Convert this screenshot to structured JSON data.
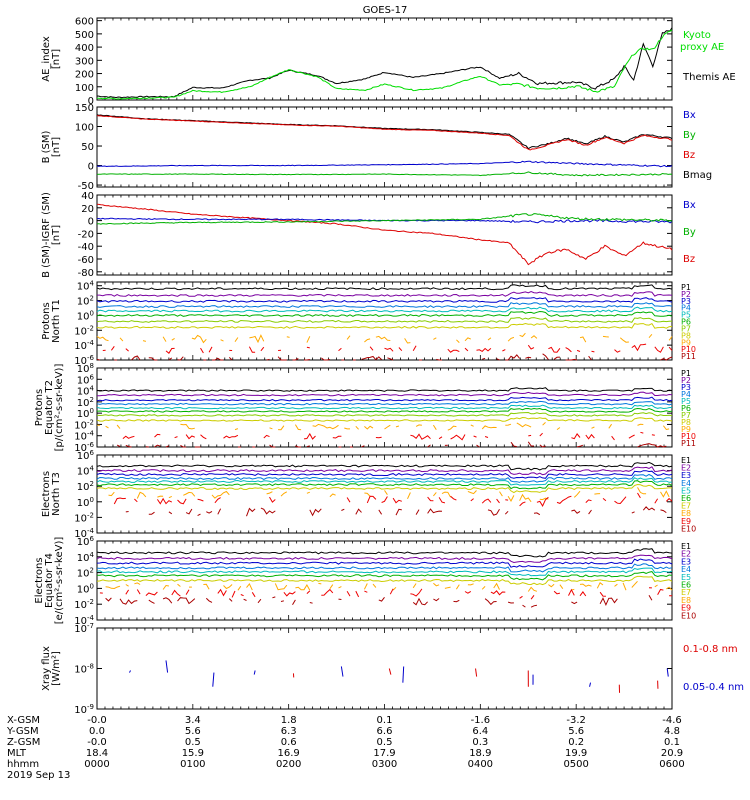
{
  "title": "GOES-17",
  "colors": {
    "black": "#000000",
    "red": "#dd0000",
    "blue": "#0000cc",
    "green": "#00b000",
    "brightgreen": "#00dd00",
    "darkred": "#8b0000"
  },
  "chart_data": [
    {
      "type": "line",
      "name": "ae-index",
      "ylabel": [
        "AE_index",
        "[nT]"
      ],
      "yticks": [
        0,
        100,
        200,
        300,
        400,
        500,
        600
      ],
      "ylim": [
        0,
        620
      ],
      "log": false,
      "legend": [
        {
          "label": "Kyoto",
          "color": "#00dd00"
        },
        {
          "label": "proxy AE",
          "color": "#00dd00"
        },
        {
          "label": "Themis AE",
          "color": "#000000"
        }
      ],
      "series": [
        {
          "name": "Themis AE",
          "color": "#000000",
          "x": [
            0,
            0.2,
            0.5,
            0.8,
            1.0,
            1.3,
            1.6,
            1.8,
            2.0,
            2.3,
            2.5,
            2.8,
            3.0,
            3.3,
            3.6,
            3.9,
            4.0,
            4.2,
            4.4,
            4.6,
            4.8,
            5.0,
            5.2,
            5.4,
            5.5,
            5.6,
            5.7,
            5.8,
            5.9,
            6.0
          ],
          "y": [
            30,
            20,
            25,
            25,
            95,
            90,
            150,
            165,
            225,
            185,
            125,
            160,
            210,
            170,
            200,
            240,
            250,
            165,
            200,
            125,
            130,
            135,
            90,
            160,
            255,
            150,
            420,
            260,
            500,
            540
          ]
        },
        {
          "name": "Kyoto proxy AE",
          "color": "#00dd00",
          "x": [
            0,
            0.2,
            0.5,
            0.8,
            1.0,
            1.3,
            1.6,
            1.8,
            2.0,
            2.3,
            2.5,
            2.8,
            3.0,
            3.3,
            3.6,
            3.9,
            4.0,
            4.2,
            4.4,
            4.6,
            4.8,
            5.0,
            5.2,
            5.4,
            5.5,
            5.6,
            5.7,
            5.8,
            5.9,
            6.0
          ],
          "y": [
            15,
            10,
            15,
            20,
            70,
            60,
            100,
            170,
            230,
            175,
            85,
            75,
            120,
            75,
            90,
            160,
            180,
            115,
            120,
            90,
            90,
            105,
            65,
            100,
            240,
            350,
            390,
            380,
            480,
            530
          ]
        }
      ]
    },
    {
      "type": "line",
      "name": "b-sm",
      "ylabel": [
        "B (SM)",
        "[nT]"
      ],
      "yticks": [
        -50,
        0,
        50,
        100,
        150
      ],
      "ylim": [
        -55,
        150
      ],
      "log": false,
      "legend": [
        {
          "label": "Bx",
          "color": "#0000cc"
        },
        {
          "label": "By",
          "color": "#00b000"
        },
        {
          "label": "Bz",
          "color": "#dd0000"
        },
        {
          "label": "Bmag",
          "color": "#000000"
        }
      ],
      "series": [
        {
          "name": "Bmag",
          "color": "#000000",
          "x": [
            0,
            0.5,
            1.0,
            1.5,
            2.0,
            2.5,
            3.0,
            3.5,
            4.0,
            4.3,
            4.5,
            4.7,
            4.9,
            5.1,
            5.3,
            5.5,
            5.7,
            6.0
          ],
          "y": [
            130,
            120,
            115,
            110,
            105,
            102,
            95,
            92,
            85,
            80,
            45,
            55,
            70,
            55,
            75,
            60,
            80,
            70
          ]
        },
        {
          "name": "Bz",
          "color": "#dd0000",
          "x": [
            0,
            0.5,
            1.0,
            1.5,
            2.0,
            2.5,
            3.0,
            3.5,
            4.0,
            4.3,
            4.5,
            4.7,
            4.9,
            5.1,
            5.3,
            5.5,
            5.7,
            6.0
          ],
          "y": [
            128,
            119,
            114,
            109,
            104,
            101,
            93,
            90,
            83,
            77,
            40,
            52,
            67,
            52,
            72,
            57,
            77,
            67
          ]
        },
        {
          "name": "Bx",
          "color": "#0000cc",
          "x": [
            0,
            1.0,
            2.0,
            3.0,
            4.0,
            4.5,
            5.0,
            6.0
          ],
          "y": [
            -2,
            0,
            0,
            2,
            5,
            10,
            5,
            -2
          ]
        },
        {
          "name": "By",
          "color": "#00b000",
          "x": [
            0,
            1.0,
            2.0,
            3.0,
            4.0,
            4.5,
            5.0,
            6.0
          ],
          "y": [
            -22,
            -22,
            -23,
            -22,
            -25,
            -18,
            -25,
            -22
          ]
        }
      ]
    },
    {
      "type": "line",
      "name": "b-sm-minus-igrf",
      "ylabel": [
        "B (SM)-IGRF (SM)",
        "[nT]"
      ],
      "yticks": [
        -80,
        -60,
        -40,
        -20,
        0,
        20,
        40
      ],
      "ylim": [
        -85,
        40
      ],
      "log": false,
      "legend": [
        {
          "label": "Bx",
          "color": "#0000cc"
        },
        {
          "label": "By",
          "color": "#00b000"
        },
        {
          "label": "Bz",
          "color": "#dd0000"
        }
      ],
      "series": [
        {
          "name": "Bz",
          "color": "#dd0000",
          "x": [
            0,
            0.5,
            1.0,
            1.5,
            2.0,
            2.5,
            3.0,
            3.5,
            4.0,
            4.3,
            4.5,
            4.7,
            4.9,
            5.1,
            5.3,
            5.5,
            5.7,
            6.0
          ],
          "y": [
            25,
            18,
            10,
            5,
            0,
            -5,
            -15,
            -20,
            -30,
            -35,
            -68,
            -50,
            -45,
            -60,
            -40,
            -55,
            -35,
            -45
          ]
        },
        {
          "name": "Bx",
          "color": "#0000cc",
          "x": [
            0,
            1.0,
            2.0,
            3.0,
            4.0,
            4.5,
            5.0,
            6.0
          ],
          "y": [
            3,
            2,
            2,
            0,
            0,
            -2,
            0,
            -2
          ]
        },
        {
          "name": "By",
          "color": "#00b000",
          "x": [
            0,
            1.0,
            2.0,
            3.0,
            4.0,
            4.5,
            5.0,
            6.0
          ],
          "y": [
            -5,
            -3,
            -2,
            0,
            2,
            10,
            3,
            0
          ]
        }
      ]
    },
    {
      "type": "line",
      "name": "protons-north",
      "ylabel": [
        "Protons",
        "North T1"
      ],
      "yticks": [
        "10^4",
        "10^2",
        "10^0",
        "10^-2",
        "10^-4",
        "10^-6"
      ],
      "ylim": [
        -6,
        4.5
      ],
      "log": true,
      "channels": [
        "P1",
        "P2",
        "P3",
        "P4",
        "P5",
        "P6",
        "P7",
        "P8",
        "P9",
        "P10",
        "P11"
      ],
      "channel_colors": [
        "#000000",
        "#7a00a0",
        "#0000cc",
        "#0077dd",
        "#00bbbb",
        "#00b000",
        "#88cc00",
        "#cccc00",
        "#ffaa00",
        "#ee0000",
        "#aa0000"
      ],
      "levels": [
        3.6,
        2.7,
        1.9,
        1.2,
        0.6,
        0.0,
        -0.8,
        -1.6,
        -3.2,
        -4.6,
        -6.0
      ]
    },
    {
      "type": "line",
      "name": "protons-equator",
      "ylabel": [
        "Protons",
        "Equator T2",
        "[p/(cm²-s-sr-keV)]"
      ],
      "yticks": [
        "10^8",
        "10^6",
        "10^4",
        "10^2",
        "10^0",
        "10^-2",
        "10^-4",
        "10^-6"
      ],
      "ylim": [
        -6,
        8
      ],
      "log": true,
      "channels": [
        "P1",
        "P2",
        "P3",
        "P4",
        "P5",
        "P6",
        "P7",
        "P8",
        "P9",
        "P10",
        "P11"
      ],
      "channel_colors": [
        "#000000",
        "#7a00a0",
        "#0000cc",
        "#0077dd",
        "#00bbbb",
        "#00b000",
        "#88cc00",
        "#cccc00",
        "#ffaa00",
        "#ee0000",
        "#aa0000"
      ],
      "levels": [
        4.0,
        3.2,
        2.3,
        1.6,
        0.9,
        0.3,
        -0.4,
        -1.3,
        -2.5,
        -4.2,
        -6.0
      ]
    },
    {
      "type": "line",
      "name": "electrons-north",
      "ylabel": [
        "Electrons",
        "North T3"
      ],
      "yticks": [
        "10^6",
        "10^4",
        "10^2",
        "10^0",
        "10^-2",
        "10^-4"
      ],
      "ylim": [
        -4,
        6
      ],
      "log": true,
      "channels": [
        "E1",
        "E2",
        "E3",
        "E4",
        "E5",
        "E6",
        "E7",
        "E8",
        "E9",
        "E10"
      ],
      "channel_colors": [
        "#000000",
        "#7a00a0",
        "#0000cc",
        "#0077dd",
        "#00bbbb",
        "#00b000",
        "#cccc00",
        "#ffaa00",
        "#ee0000",
        "#aa0000"
      ],
      "levels": [
        4.6,
        4.0,
        3.5,
        3.0,
        2.6,
        2.2,
        1.7,
        0.9,
        0.2,
        -1.3
      ]
    },
    {
      "type": "line",
      "name": "electrons-equator",
      "ylabel": [
        "Electrons",
        "Equator T4",
        "[e/(cm²-s-sr-keV)]"
      ],
      "yticks": [
        "10^6",
        "10^4",
        "10^2",
        "10^0",
        "10^-2",
        "10^-4"
      ],
      "ylim": [
        -4,
        6
      ],
      "log": true,
      "channels": [
        "E1",
        "E2",
        "E3",
        "E4",
        "E5",
        "E6",
        "E7",
        "E8",
        "E9",
        "E10"
      ],
      "channel_colors": [
        "#000000",
        "#7a00a0",
        "#0000cc",
        "#0077dd",
        "#00bbbb",
        "#00b000",
        "#cccc00",
        "#ffaa00",
        "#ee0000",
        "#aa0000"
      ],
      "levels": [
        4.5,
        3.8,
        3.2,
        2.6,
        2.1,
        1.6,
        1.0,
        0.2,
        -0.6,
        -1.6
      ]
    },
    {
      "type": "scatter",
      "name": "xray-flux",
      "ylabel": [
        "Xray flux",
        "[W/m²]"
      ],
      "yticks": [
        "10^-7",
        "10^-8",
        "10^-9"
      ],
      "ylim": [
        -9,
        -7
      ],
      "log": true,
      "legend": [
        {
          "label": "0.1-0.8 nm",
          "color": "#dd0000"
        },
        {
          "label": "0.05-0.4 nm",
          "color": "#0000cc"
        }
      ],
      "segments": [
        {
          "x": 0.35,
          "y1": -8.05,
          "y2": -8.1,
          "c": "#0000cc"
        },
        {
          "x": 0.72,
          "y1": -7.8,
          "y2": -8.1,
          "c": "#0000cc"
        },
        {
          "x": 1.22,
          "y1": -8.1,
          "y2": -8.45,
          "c": "#0000cc"
        },
        {
          "x": 1.65,
          "y1": -8.05,
          "y2": -8.15,
          "c": "#0000cc"
        },
        {
          "x": 2.05,
          "y1": -8.12,
          "y2": -8.22,
          "c": "#dd0000"
        },
        {
          "x": 2.55,
          "y1": -7.95,
          "y2": -8.2,
          "c": "#0000cc"
        },
        {
          "x": 3.05,
          "y1": -8.0,
          "y2": -8.15,
          "c": "#dd0000"
        },
        {
          "x": 3.2,
          "y1": -7.95,
          "y2": -8.35,
          "c": "#0000cc"
        },
        {
          "x": 3.95,
          "y1": -8.0,
          "y2": -8.2,
          "c": "#dd0000"
        },
        {
          "x": 4.5,
          "y1": -8.05,
          "y2": -8.45,
          "c": "#dd0000"
        },
        {
          "x": 4.55,
          "y1": -8.15,
          "y2": -8.4,
          "c": "#0000cc"
        },
        {
          "x": 5.15,
          "y1": -8.35,
          "y2": -8.45,
          "c": "#0000cc"
        },
        {
          "x": 5.45,
          "y1": -8.4,
          "y2": -8.6,
          "c": "#dd0000"
        },
        {
          "x": 5.85,
          "y1": -8.3,
          "y2": -8.5,
          "c": "#dd0000"
        },
        {
          "x": 5.95,
          "y1": -8.0,
          "y2": -8.2,
          "c": "#0000cc"
        }
      ]
    }
  ],
  "footer": {
    "labels": [
      "X-GSM",
      "Y-GSM",
      "Z-GSM",
      "MLT",
      "hhmm",
      "2019 Sep 13"
    ],
    "columns": [
      {
        "x": "-0.0",
        "y": "0.0",
        "z": "-0.0",
        "mlt": "18.4",
        "hhmm": "0000"
      },
      {
        "x": "3.4",
        "y": "5.6",
        "z": "0.5",
        "mlt": "15.9",
        "hhmm": "0100"
      },
      {
        "x": "1.8",
        "y": "6.3",
        "z": "0.6",
        "mlt": "16.9",
        "hhmm": "0200"
      },
      {
        "x": "0.1",
        "y": "6.6",
        "z": "0.5",
        "mlt": "17.9",
        "hhmm": "0300"
      },
      {
        "x": "-1.6",
        "y": "6.4",
        "z": "0.3",
        "mlt": "18.9",
        "hhmm": "0400"
      },
      {
        "x": "-3.2",
        "y": "5.6",
        "z": "0.2",
        "mlt": "19.9",
        "hhmm": "0500"
      },
      {
        "x": "-4.6",
        "y": "4.8",
        "z": "0.1",
        "mlt": "20.9",
        "hhmm": "0600"
      }
    ]
  }
}
